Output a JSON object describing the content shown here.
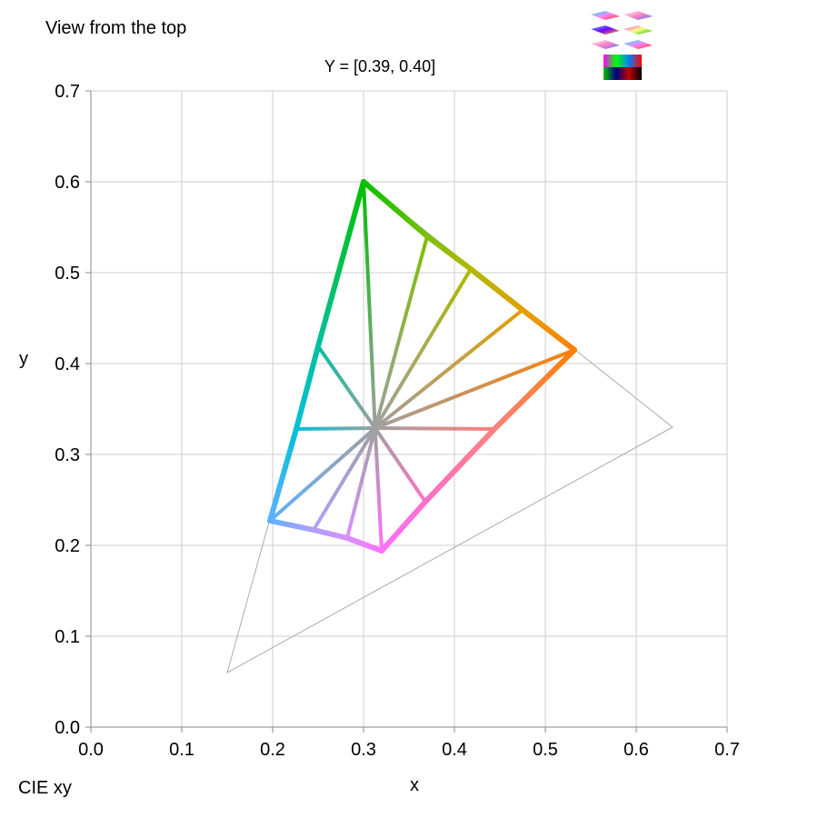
{
  "header": {
    "view_label": "View from the top",
    "range_label": "Y = [0.39, 0.40]"
  },
  "footer": {
    "space_label": "CIE xy"
  },
  "thumbnail": {
    "icon": "gamut-view-thumbnail-icon"
  },
  "chart_data": {
    "type": "line",
    "title": "Y = [0.39, 0.40]",
    "xlabel": "x",
    "ylabel": "y",
    "xlim": [
      0,
      0.7
    ],
    "ylim": [
      0,
      0.7
    ],
    "x_ticks": [
      "0.0",
      "0.1",
      "0.2",
      "0.3",
      "0.4",
      "0.5",
      "0.6",
      "0.7"
    ],
    "y_ticks": [
      "0.0",
      "0.1",
      "0.2",
      "0.3",
      "0.4",
      "0.5",
      "0.6",
      "0.7"
    ],
    "grid": true,
    "white_point": [
      0.3127,
      0.329
    ],
    "reference_gamut": {
      "color": "#aaaaaa",
      "points": [
        [
          0.64,
          0.33
        ],
        [
          0.3,
          0.6
        ],
        [
          0.15,
          0.06
        ]
      ]
    },
    "slice_boundary": [
      {
        "x": 0.3,
        "y": 0.6,
        "color": "#00c000"
      },
      {
        "x": 0.37,
        "y": 0.54,
        "color": "#7cc000"
      },
      {
        "x": 0.418,
        "y": 0.504,
        "color": "#b0b800"
      },
      {
        "x": 0.475,
        "y": 0.459,
        "color": "#e0a000"
      },
      {
        "x": 0.532,
        "y": 0.415,
        "color": "#ff8000"
      },
      {
        "x": 0.444,
        "y": 0.328,
        "color": "#ff8080"
      },
      {
        "x": 0.368,
        "y": 0.248,
        "color": "#ff70c8"
      },
      {
        "x": 0.32,
        "y": 0.194,
        "color": "#ff70ff"
      },
      {
        "x": 0.282,
        "y": 0.208,
        "color": "#d890ff"
      },
      {
        "x": 0.245,
        "y": 0.217,
        "color": "#b0a0ff"
      },
      {
        "x": 0.197,
        "y": 0.227,
        "color": "#60b0ff"
      },
      {
        "x": 0.226,
        "y": 0.328,
        "color": "#00c0d8"
      },
      {
        "x": 0.25,
        "y": 0.419,
        "color": "#00c0a0"
      }
    ],
    "spokes_to_white_point": true
  }
}
